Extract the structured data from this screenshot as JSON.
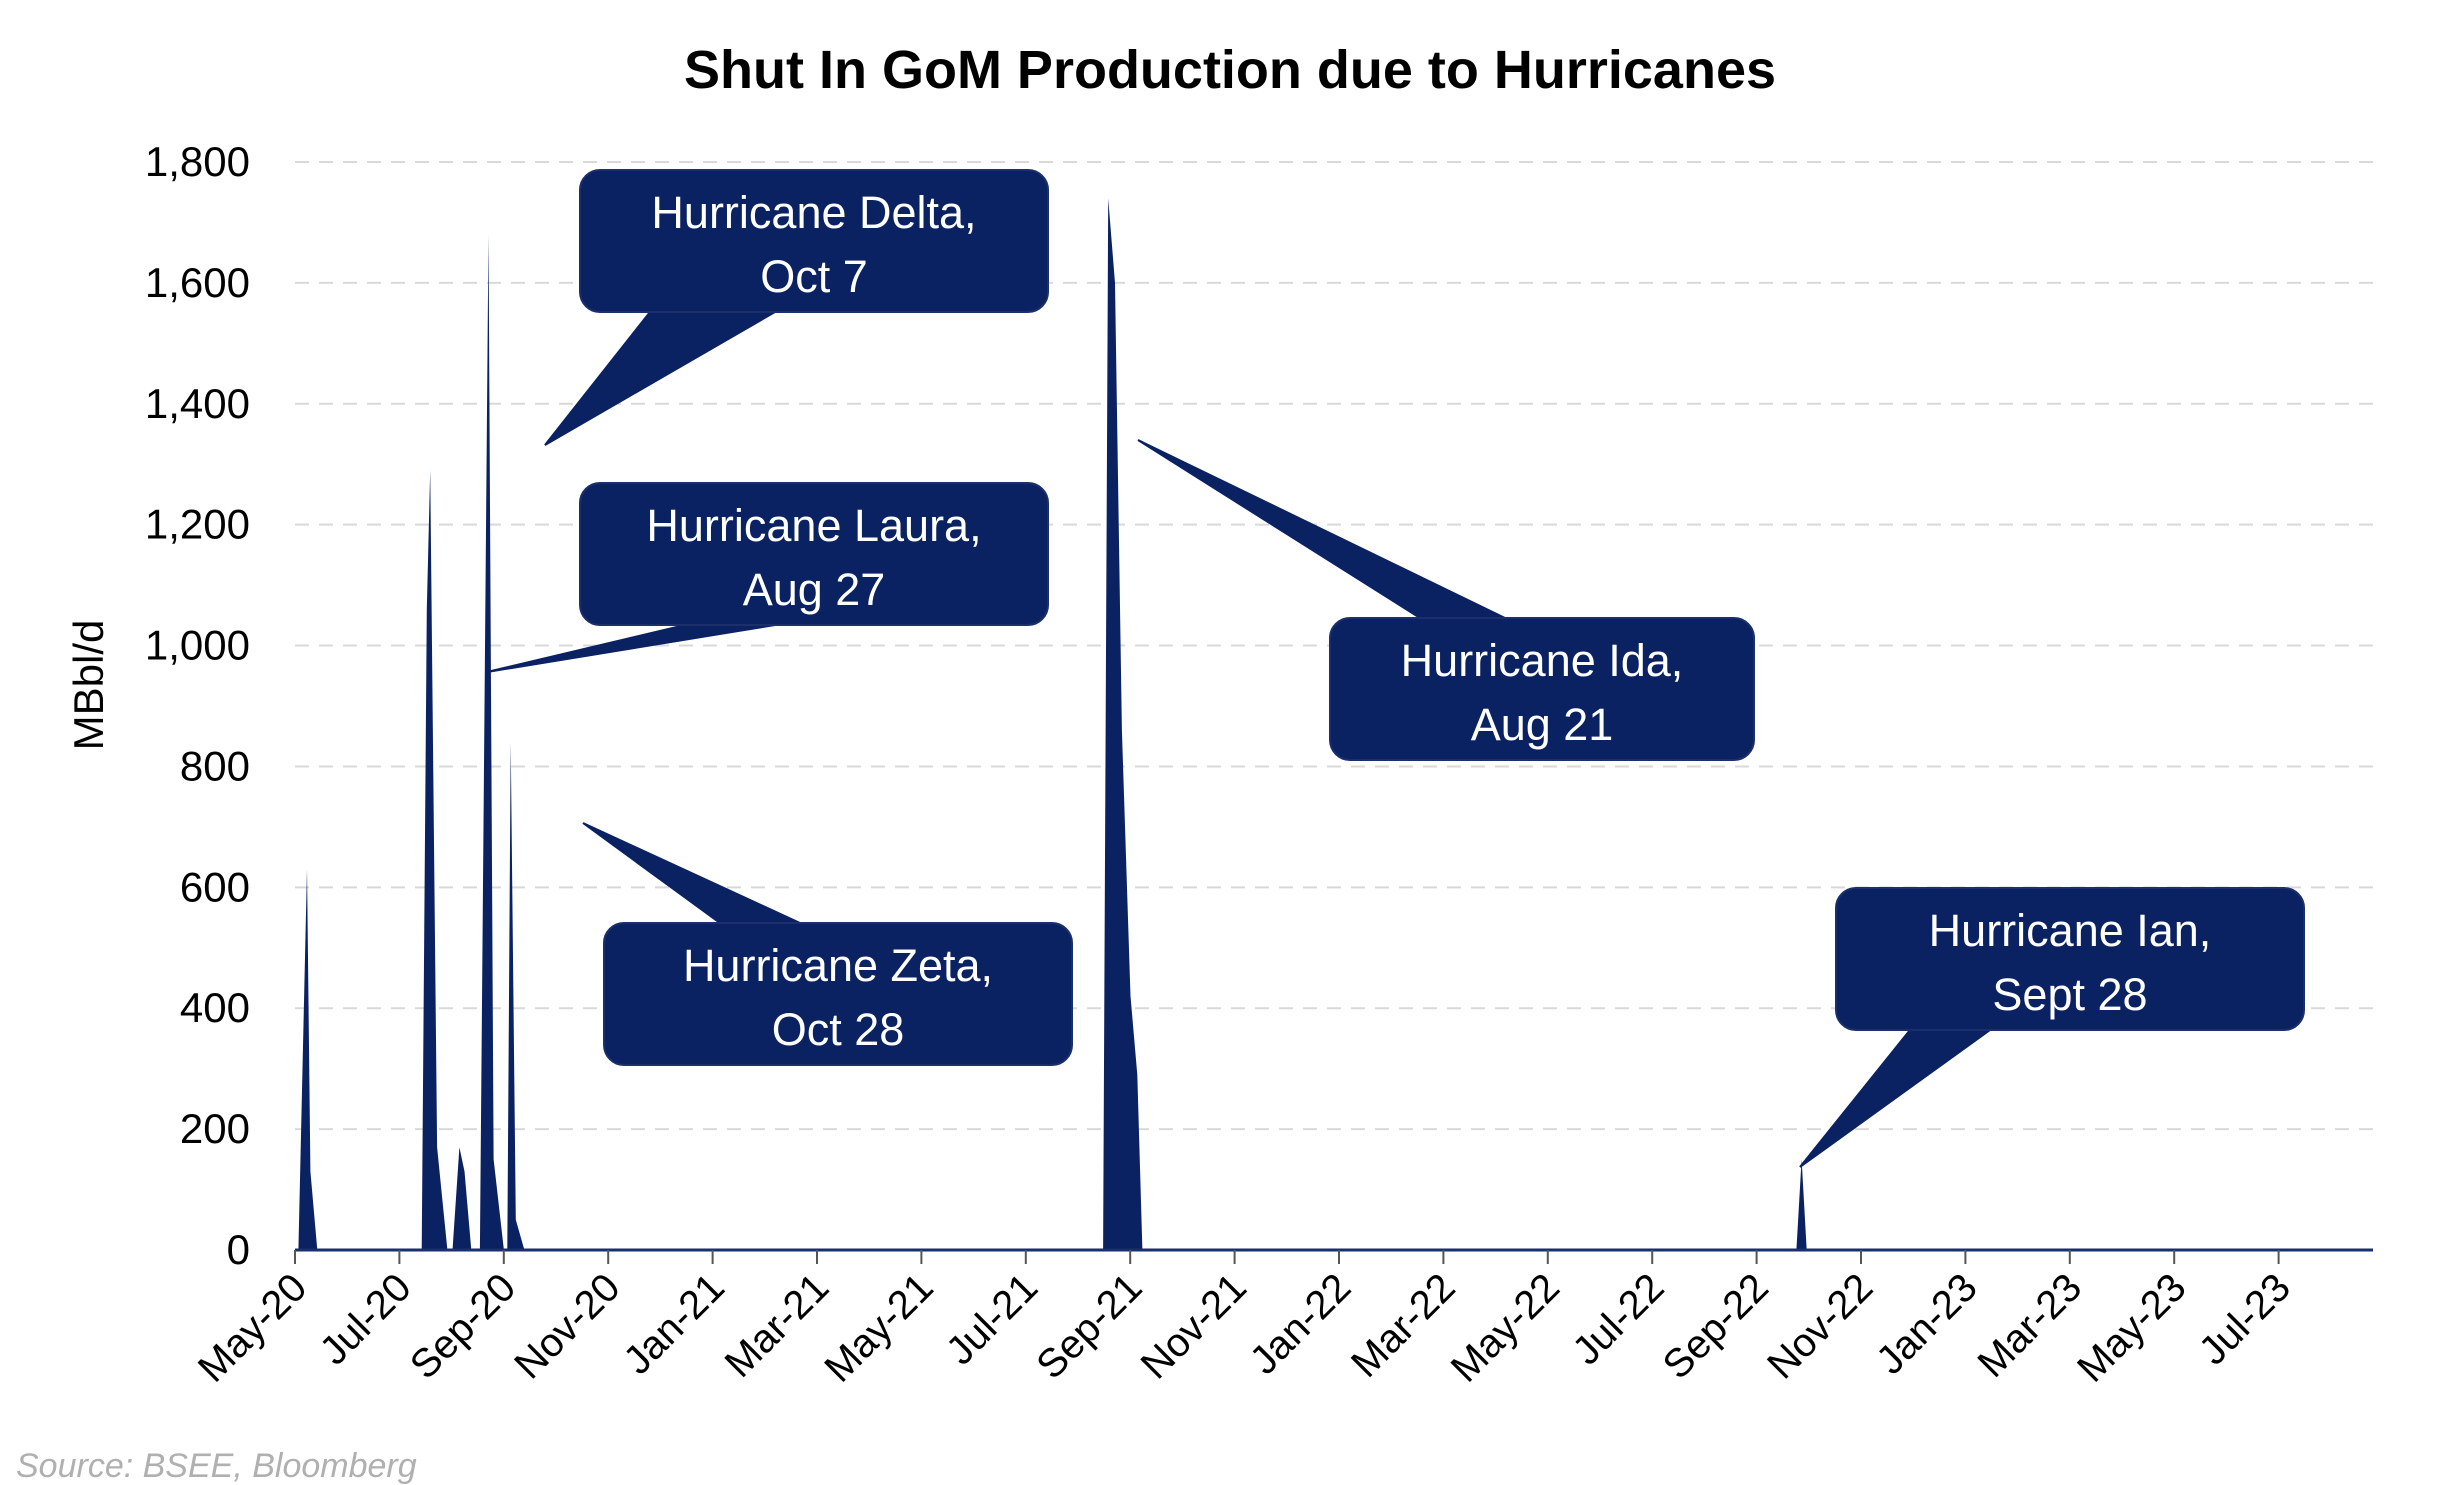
{
  "chart_data": {
    "type": "area",
    "title": "Shut In GoM Production due to Hurricanes",
    "xlabel": "",
    "ylabel": "MBbl/d",
    "ylim": [
      0,
      1800
    ],
    "yticks": [
      "0",
      "200",
      "400",
      "600",
      "800",
      "1,000",
      "1,200",
      "1,400",
      "1,600",
      "1,800"
    ],
    "ytick_values": [
      0,
      200,
      400,
      600,
      800,
      1000,
      1200,
      1400,
      1600,
      1800
    ],
    "xticks": [
      "May-20",
      "Jul-20",
      "Sep-20",
      "Nov-20",
      "Jan-21",
      "Mar-21",
      "May-21",
      "Jul-21",
      "Sep-21",
      "Nov-21",
      "Jan-22",
      "Mar-22",
      "May-22",
      "Jul-22",
      "Sep-22",
      "Nov-22",
      "Jan-23",
      "Mar-23",
      "May-23",
      "Jul-23"
    ],
    "grid": "horizontal dashed",
    "legend": "none",
    "colors": {
      "area": "#0b2262",
      "grid": "#d9d9d9",
      "callout": "#0b2262"
    },
    "series": [
      {
        "points": [
          [
            "2020-05-01",
            0
          ],
          [
            "2020-05-03",
            0
          ],
          [
            "2020-05-08",
            630
          ],
          [
            "2020-05-10",
            130
          ],
          [
            "2020-05-14",
            0
          ],
          [
            "2020-07-14",
            0
          ],
          [
            "2020-07-17",
            1060
          ],
          [
            "2020-07-19",
            1290
          ],
          [
            "2020-07-23",
            170
          ],
          [
            "2020-07-29",
            0
          ],
          [
            "2020-08-01",
            0
          ],
          [
            "2020-08-05",
            170
          ],
          [
            "2020-08-08",
            130
          ],
          [
            "2020-08-12",
            0
          ],
          [
            "2020-08-17",
            0
          ],
          [
            "2020-08-22",
            1680
          ],
          [
            "2020-08-25",
            150
          ],
          [
            "2020-08-31",
            0
          ],
          [
            "2020-09-02",
            0
          ],
          [
            "2020-09-04",
            840
          ],
          [
            "2020-09-07",
            50
          ],
          [
            "2020-09-12",
            0
          ],
          [
            "2021-08-16",
            0
          ],
          [
            "2021-08-19",
            1740
          ],
          [
            "2021-08-23",
            1600
          ],
          [
            "2021-08-27",
            860
          ],
          [
            "2021-09-01",
            420
          ],
          [
            "2021-09-05",
            290
          ],
          [
            "2021-09-08",
            0
          ],
          [
            "2022-09-25",
            0
          ],
          [
            "2022-09-28",
            150
          ],
          [
            "2022-10-01",
            0
          ],
          [
            "2023-08-31",
            0
          ]
        ]
      }
    ],
    "annotations": [
      {
        "text": [
          "Hurricane Delta,",
          "Oct 7"
        ]
      },
      {
        "text": [
          "Hurricane Laura,",
          "Aug 27"
        ]
      },
      {
        "text": [
          "Hurricane Zeta,",
          "Oct 28"
        ]
      },
      {
        "text": [
          "Hurricane Ida,",
          "Aug 21"
        ]
      },
      {
        "text": [
          "Hurricane Ian,",
          "Sept 28"
        ]
      }
    ]
  },
  "source": "Source: BSEE, Bloomberg"
}
